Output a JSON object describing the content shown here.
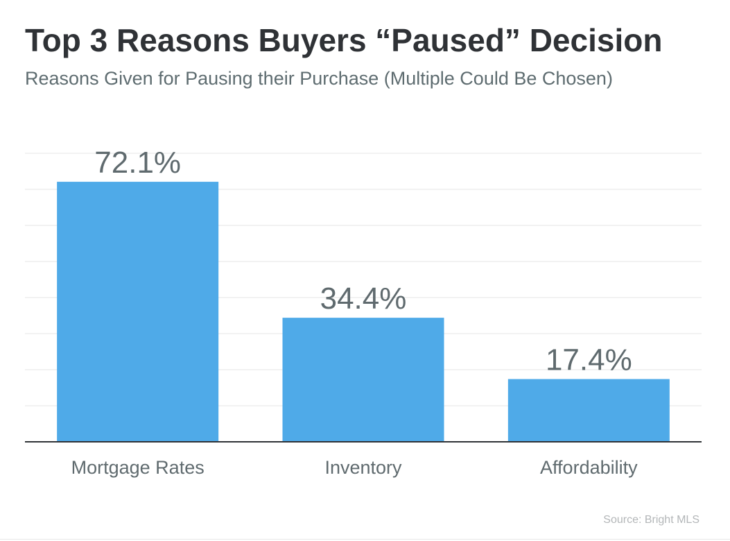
{
  "chart_data": {
    "type": "bar",
    "title": "Top 3 Reasons Buyers “Paused” Decision",
    "subtitle": "Reasons Given for Pausing their Purchase (Multiple Could Be Chosen)",
    "categories": [
      "Mortgage Rates",
      "Inventory",
      "Affordability"
    ],
    "values": [
      72.1,
      34.4,
      17.4
    ],
    "value_labels": [
      "72.1%",
      "34.4%",
      "17.4%"
    ],
    "ylim": [
      0,
      80
    ],
    "grid": true,
    "legend": "none",
    "bar_color": "#4faae8",
    "source": "Source: Bright MLS"
  }
}
